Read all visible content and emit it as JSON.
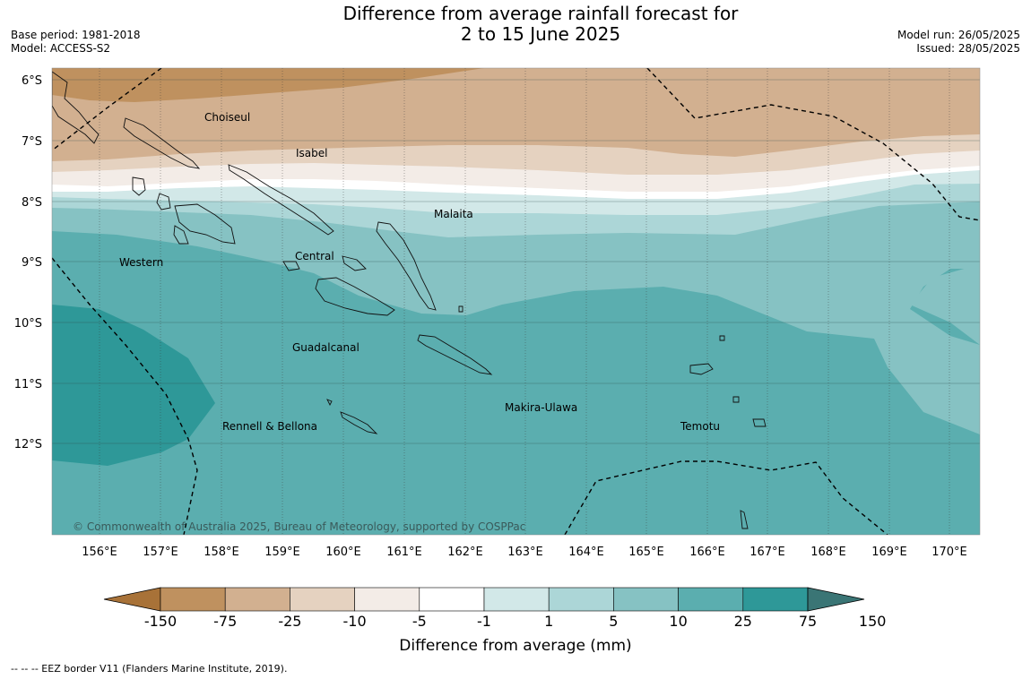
{
  "title": {
    "line1": "Difference from average rainfall forecast for",
    "line2": "2 to 15 June 2025"
  },
  "meta": {
    "base_period": "Base period: 1981-2018",
    "model": "Model: ACCESS-S2",
    "model_run": "Model run: 26/05/2025",
    "issued": "Issued: 28/05/2025"
  },
  "map": {
    "latitude_labels": [
      "6°S",
      "7°S",
      "8°S",
      "9°S",
      "10°S",
      "11°S",
      "12°S"
    ],
    "longitude_labels": [
      "156°E",
      "157°E",
      "158°E",
      "159°E",
      "160°E",
      "161°E",
      "162°E",
      "163°E",
      "164°E",
      "165°E",
      "166°E",
      "167°E",
      "168°E",
      "169°E",
      "170°E"
    ],
    "province_labels": [
      "Choiseul",
      "Isabel",
      "Malaita",
      "Western",
      "Central",
      "Guadalcanal",
      "Makira-Ulawa",
      "Rennell & Bellona",
      "Temotu"
    ],
    "copyright": "© Commonwealth of Australia 2025, Bureau of Meteorology, supported by COSPPac"
  },
  "colorbar": {
    "ticks": [
      "-150",
      "-75",
      "-25",
      "-10",
      "-5",
      "-1",
      "1",
      "5",
      "10",
      "25",
      "75",
      "150"
    ],
    "colors": [
      "#a87238",
      "#bf915f",
      "#d2b090",
      "#e5d2c0",
      "#f3ece7",
      "#ffffff",
      "#d2e8e8",
      "#acd6d7",
      "#86c2c3",
      "#5baeaf",
      "#2e9898",
      "#3a7575"
    ],
    "label": "Difference from average (mm)"
  },
  "footer": {
    "eez_legend": "--  --  -- EEZ border V11 (Flanders Marine Institute, 2019)."
  }
}
